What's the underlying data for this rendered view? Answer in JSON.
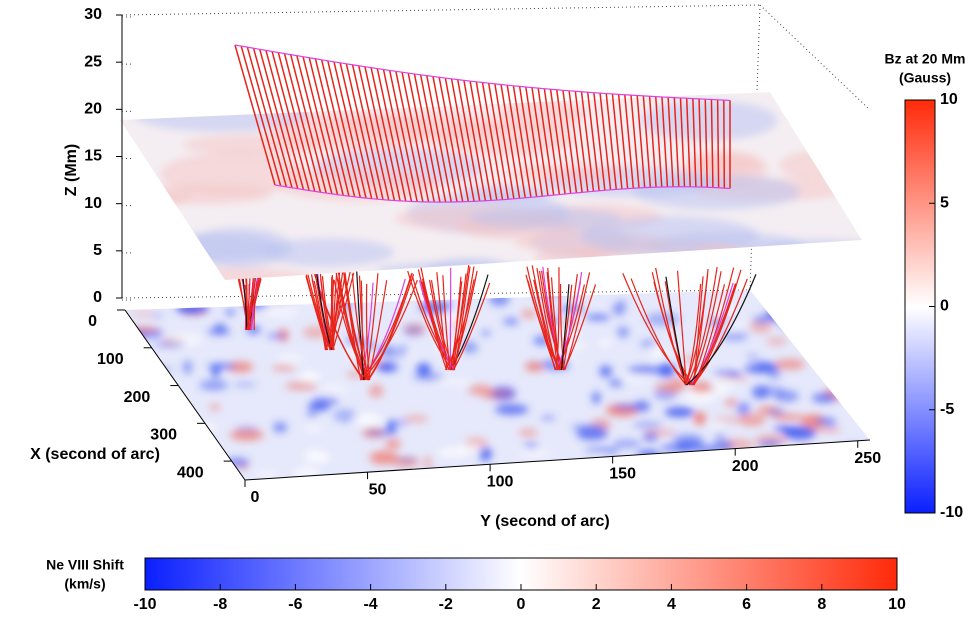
{
  "chart_data": {
    "type": "surface3d",
    "xlabel": "X (second of arc)",
    "ylabel": "Y (second of arc)",
    "zlabel": "Z (Mm)",
    "xlim": [
      0,
      450
    ],
    "xticks": [
      0,
      100,
      200,
      300,
      400
    ],
    "ylim": [
      0,
      255
    ],
    "yticks": [
      0,
      50,
      100,
      150,
      200,
      250
    ],
    "zlim": [
      0,
      30
    ],
    "zticks": [
      0,
      5,
      10,
      15,
      20,
      25,
      30
    ],
    "plane_z": 20,
    "colorbars": [
      {
        "label": [
          "Bz at 20 Mm",
          "(Gauss)"
        ],
        "lim": [
          -10,
          10
        ],
        "ticks": [
          -10,
          -5,
          0,
          5,
          10
        ],
        "orientation": "vertical"
      },
      {
        "label": [
          "Ne VIII Shift",
          "(km/s)"
        ],
        "lim": [
          -10,
          10
        ],
        "ticks": [
          -10,
          -8,
          -6,
          -4,
          -2,
          0,
          2,
          4,
          6,
          8,
          10
        ],
        "orientation": "horizontal"
      }
    ],
    "colormap": [
      "#0a1fff",
      "#ffffff",
      "#ff2a0a"
    ]
  }
}
